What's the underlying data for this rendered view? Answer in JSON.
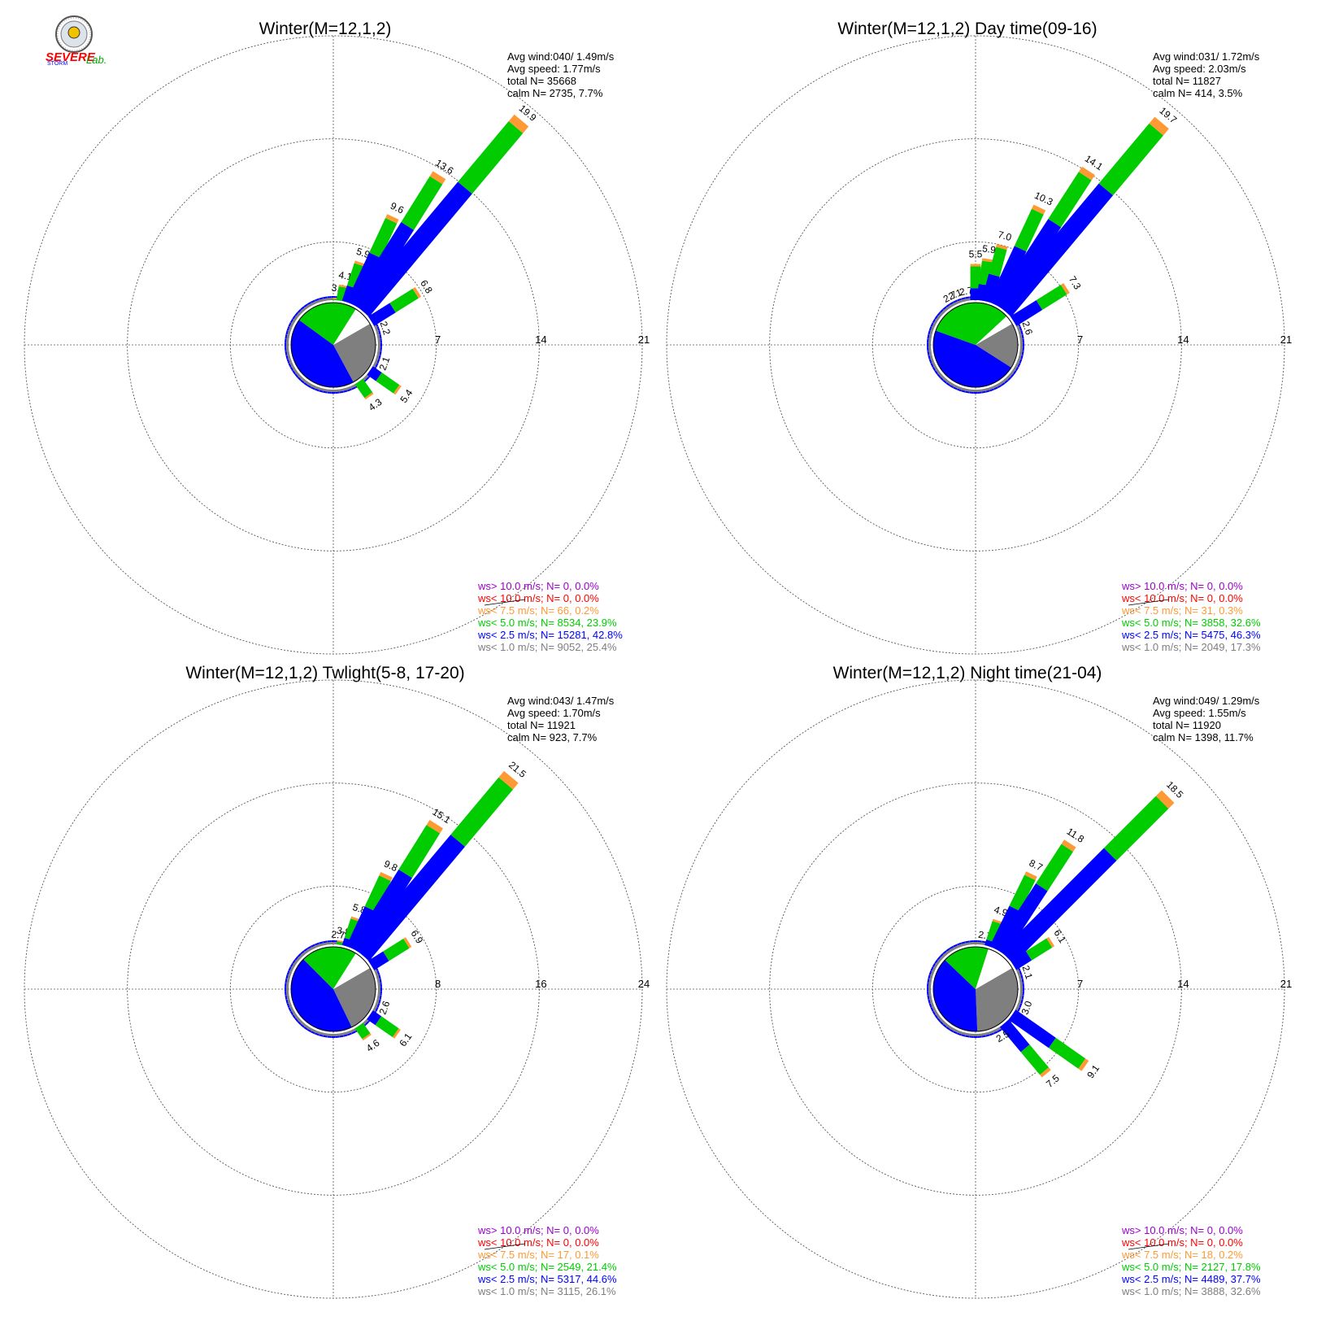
{
  "colors": {
    "calm": "#7f7f7f",
    "lt2_5": "#0000ff",
    "lt5_0": "#00cc00",
    "lt7_5": "#ff9933",
    "lt10": "#ff0000",
    "gt10": "#9900cc",
    "center_bg": "#ffffff"
  },
  "logo": {
    "icon": "severe-storm-lab-seal-icon",
    "line1": "SEVERE",
    "line2": "STORM",
    "line3": "Lab."
  },
  "chart_data": [
    {
      "type": "windrose",
      "title": "Winter(M=12,1,2)",
      "rings": [
        7,
        14,
        21
      ],
      "max": 21,
      "stats": {
        "avg_wind": "Avg wind:040/ 1.49m/s",
        "avg_speed": "Avg speed: 1.77m/s",
        "total": "total N=       35668",
        "calm": "calm N=    2735,   7.7%"
      },
      "legend": [
        {
          "text": "ws> 10.0 m/s; N=      0,  0.0%",
          "color": "#9900cc"
        },
        {
          "text": "ws< 10.0 m/s; N=      0,  0.0%",
          "color": "#ff0000"
        },
        {
          "text": "ws<  7.5 m/s; N=     66,  0.2%",
          "color": "#ff9933"
        },
        {
          "text": "ws<  5.0 m/s; N=  8534, 23.9%",
          "color": "#00cc00"
        },
        {
          "text": "ws<  2.5 m/s; N= 15281, 42.8%",
          "color": "#0000ff"
        },
        {
          "text": "ws<  1.0 m/s; N=  9052, 25.4%",
          "color": "#7f7f7f"
        }
      ],
      "pie": [
        25.4,
        42.8,
        23.9,
        7.7
      ],
      "spokes": [
        {
          "dir": 5,
          "total": 3.2,
          "label": "3.2"
        },
        {
          "dir": 10,
          "total": 4.1,
          "label": "4.1"
        },
        {
          "dir": 18,
          "total": 5.9,
          "label": "5.9"
        },
        {
          "dir": 25,
          "total": 9.6,
          "label": "9.6"
        },
        {
          "dir": 32,
          "total": 13.6,
          "label": "13.6"
        },
        {
          "dir": 40,
          "total": 19.9,
          "label": "19.9"
        },
        {
          "dir": 58,
          "total": 6.8,
          "label": "6.8"
        },
        {
          "dir": 72,
          "total": 2.2,
          "label": "2.2"
        },
        {
          "dir": 110,
          "total": 2.1,
          "label": "2.1"
        },
        {
          "dir": 125,
          "total": 5.4,
          "label": "5.4"
        },
        {
          "dir": 145,
          "total": 4.3,
          "label": "4.3"
        }
      ]
    },
    {
      "type": "windrose",
      "title": "Winter(M=12,1,2) Day time(09-16)",
      "rings": [
        7,
        14,
        21
      ],
      "max": 21,
      "stats": {
        "avg_wind": "Avg wind:031/ 1.72m/s",
        "avg_speed": "Avg speed: 2.03m/s",
        "total": "total N=       11827",
        "calm": "calm N=     414,   3.5%"
      },
      "legend": [
        {
          "text": "ws> 10.0 m/s; N=      0,  0.0%",
          "color": "#9900cc"
        },
        {
          "text": "ws< 10.0 m/s; N=      0,  0.0%",
          "color": "#ff0000"
        },
        {
          "text": "ws<  7.5 m/s; N=     31,  0.3%",
          "color": "#ff9933"
        },
        {
          "text": "ws<  5.0 m/s; N=  3858, 32.6%",
          "color": "#00cc00"
        },
        {
          "text": "ws<  2.5 m/s; N=  5475, 46.3%",
          "color": "#0000ff"
        },
        {
          "text": "ws<  1.0 m/s; N=  2049, 17.3%",
          "color": "#7f7f7f"
        }
      ],
      "pie": [
        17.3,
        46.3,
        32.6,
        3.5
      ],
      "spokes": [
        {
          "dir": -28,
          "total": 2.7,
          "label": "2.7"
        },
        {
          "dir": -22,
          "total": 2.1,
          "label": "2.1"
        },
        {
          "dir": -10,
          "total": 2.7,
          "label": "2.7"
        },
        {
          "dir": 0,
          "total": 5.5,
          "label": "5.5"
        },
        {
          "dir": 8,
          "total": 5.9,
          "label": "5.9"
        },
        {
          "dir": 15,
          "total": 7.0,
          "label": "7.0"
        },
        {
          "dir": 25,
          "total": 10.3,
          "label": "10.3"
        },
        {
          "dir": 33,
          "total": 14.1,
          "label": "14.1"
        },
        {
          "dir": 40,
          "total": 19.7,
          "label": "19.7"
        },
        {
          "dir": 58,
          "total": 7.3,
          "label": "7.3"
        },
        {
          "dir": 72,
          "total": 2.6,
          "label": "2.6"
        }
      ]
    },
    {
      "type": "windrose",
      "title": "Winter(M=12,1,2) Twlight(5-8, 17-20)",
      "rings": [
        8,
        16,
        24
      ],
      "max": 24,
      "stats": {
        "avg_wind": "Avg wind:043/ 1.47m/s",
        "avg_speed": "Avg speed: 1.70m/s",
        "total": "total N=       11921",
        "calm": "calm N=     923,   7.7%"
      },
      "legend": [
        {
          "text": "ws> 10.0 m/s; N=      0,  0.0%",
          "color": "#9900cc"
        },
        {
          "text": "ws< 10.0 m/s; N=      0,  0.0%",
          "color": "#ff0000"
        },
        {
          "text": "ws<  7.5 m/s; N=     17,  0.1%",
          "color": "#ff9933"
        },
        {
          "text": "ws<  5.0 m/s; N=  2549, 21.4%",
          "color": "#00cc00"
        },
        {
          "text": "ws<  2.5 m/s; N=  5317, 44.6%",
          "color": "#0000ff"
        },
        {
          "text": "ws<  1.0 m/s; N=  3115, 26.1%",
          "color": "#7f7f7f"
        }
      ],
      "pie": [
        26.1,
        44.6,
        21.4,
        7.7
      ],
      "spokes": [
        {
          "dir": 5,
          "total": 2.7,
          "label": "2.7"
        },
        {
          "dir": 10,
          "total": 3.8,
          "label": "3.8"
        },
        {
          "dir": 18,
          "total": 5.8,
          "label": "5.8"
        },
        {
          "dir": 25,
          "total": 9.8,
          "label": "9.8"
        },
        {
          "dir": 32,
          "total": 15.1,
          "label": "15.1"
        },
        {
          "dir": 40,
          "total": 21.5,
          "label": "21.5"
        },
        {
          "dir": 58,
          "total": 6.9,
          "label": "6.9"
        },
        {
          "dir": 110,
          "total": 2.6,
          "label": "2.6"
        },
        {
          "dir": 125,
          "total": 6.1,
          "label": "6.1"
        },
        {
          "dir": 145,
          "total": 4.6,
          "label": "4.6"
        }
      ]
    },
    {
      "type": "windrose",
      "title": "Winter(M=12,1,2) Night time(21-04)",
      "rings": [
        7,
        14,
        21
      ],
      "max": 21,
      "stats": {
        "avg_wind": "Avg wind:049/ 1.29m/s",
        "avg_speed": "Avg speed: 1.55m/s",
        "total": "total N=       11920",
        "calm": "calm N=    1398,  11.7%"
      },
      "legend": [
        {
          "text": "ws> 10.0 m/s; N=      0,  0.0%",
          "color": "#9900cc"
        },
        {
          "text": "ws< 10.0 m/s; N=      0,  0.0%",
          "color": "#ff0000"
        },
        {
          "text": "ws<  7.5 m/s; N=     18,  0.2%",
          "color": "#ff9933"
        },
        {
          "text": "ws<  5.0 m/s; N=  2127, 17.8%",
          "color": "#00cc00"
        },
        {
          "text": "ws<  2.5 m/s; N=  4489, 37.7%",
          "color": "#0000ff"
        },
        {
          "text": "ws<  1.0 m/s; N=  3888, 32.6%",
          "color": "#7f7f7f"
        }
      ],
      "pie": [
        32.6,
        37.7,
        17.8,
        11.7
      ],
      "spokes": [
        {
          "dir": 10,
          "total": 2.7,
          "label": "2.7"
        },
        {
          "dir": 18,
          "total": 4.9,
          "label": "4.9"
        },
        {
          "dir": 26,
          "total": 8.7,
          "label": "8.7"
        },
        {
          "dir": 33,
          "total": 11.8,
          "label": "11.8"
        },
        {
          "dir": 45,
          "total": 18.5,
          "label": "18.5"
        },
        {
          "dir": 58,
          "total": 6.1,
          "label": "6.1"
        },
        {
          "dir": 72,
          "total": 2.1,
          "label": "2.1"
        },
        {
          "dir": 110,
          "total": 3.0,
          "label": "3.0"
        },
        {
          "dir": 125,
          "total": 9.1,
          "label": "9.1"
        },
        {
          "dir": 140,
          "total": 7.5,
          "label": "7.5"
        },
        {
          "dir": 150,
          "total": 2.5,
          "label": "2.5"
        }
      ]
    }
  ]
}
